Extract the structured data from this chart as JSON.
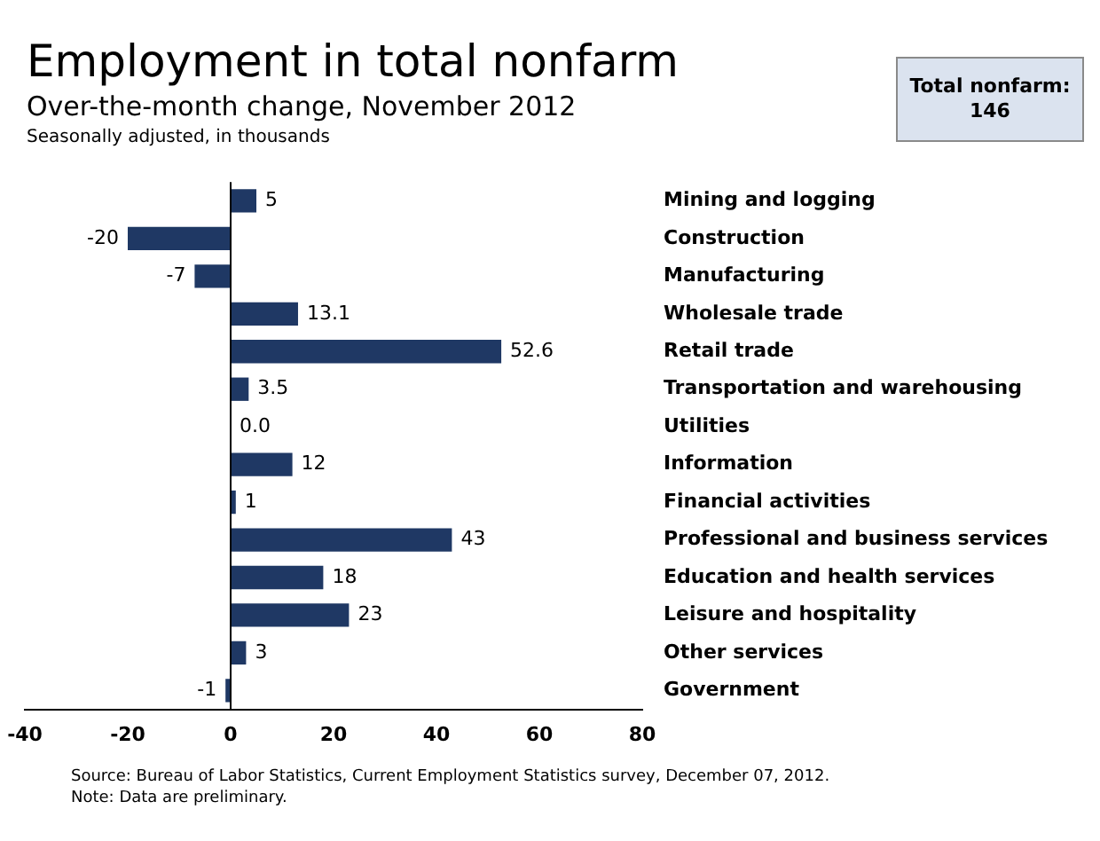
{
  "chart_data": {
    "type": "bar",
    "orientation": "horizontal",
    "title": "Employment in total nonfarm",
    "subtitle": "Over-the-month change, November 2012",
    "annotations": [
      "Seasonally adjusted, in thousands",
      "Total nonfarm:\n146",
      "Source: Bureau of Labor Statistics, Current Employment Statistics survey, December 07, 2012.",
      "Note: Data are preliminary."
    ],
    "categories": [
      "Mining and logging",
      "Construction",
      "Manufacturing",
      "Wholesale trade",
      "Retail trade",
      "Transportation and warehousing",
      "Utilities",
      "Information",
      "Financial activities",
      "Professional and business services",
      "Education and health services",
      "Leisure and hospitality",
      "Other services",
      "Government"
    ],
    "values": [
      5,
      -20,
      -7,
      13.1,
      52.6,
      3.5,
      0,
      12,
      1,
      43,
      18,
      23,
      3,
      -1
    ],
    "value_labels": [
      "5",
      "-20",
      "-7",
      "13.1",
      "52.6",
      "3.5",
      "0.0",
      "12",
      "1",
      "43",
      "18",
      "23",
      "3",
      "-1"
    ],
    "color": "#1f3864",
    "xlim": [
      -40,
      80
    ],
    "xticks": [
      -40,
      -20,
      0,
      20,
      40,
      60,
      80
    ]
  }
}
